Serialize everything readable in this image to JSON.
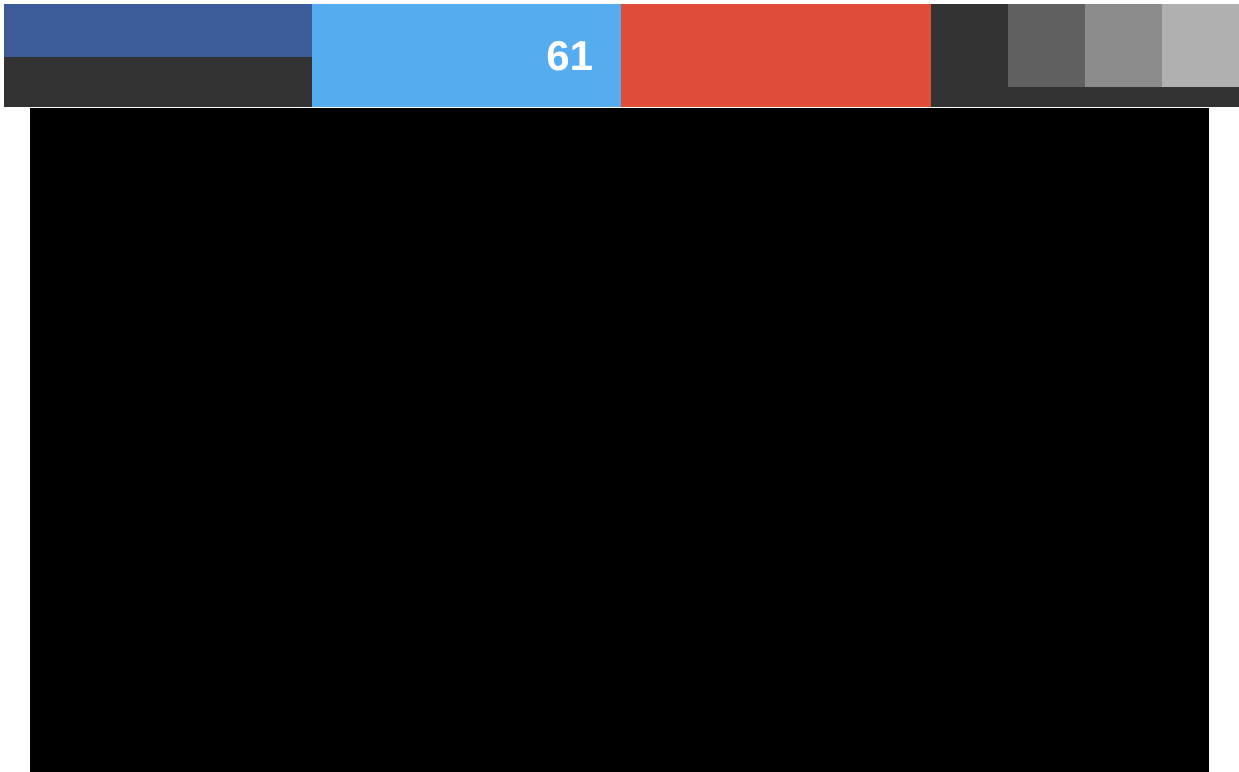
{
  "share_bar": {
    "tiles": [
      {
        "id": "facebook",
        "color": "#3b5b99",
        "icon": "facebook-icon"
      },
      {
        "id": "twitter",
        "color": "#55acee",
        "icon": "twitter-icon",
        "count": "61"
      },
      {
        "id": "google-plus",
        "color": "#e04e39",
        "icon": "google-plus-icon"
      },
      {
        "id": "more",
        "color": "#333333",
        "icon": "more-icon"
      }
    ],
    "extra_buttons": [
      {
        "color": "#606060"
      },
      {
        "color": "#8c8c8c"
      },
      {
        "color": "#b0b0b0"
      }
    ]
  },
  "video": {
    "background": "#000000"
  }
}
